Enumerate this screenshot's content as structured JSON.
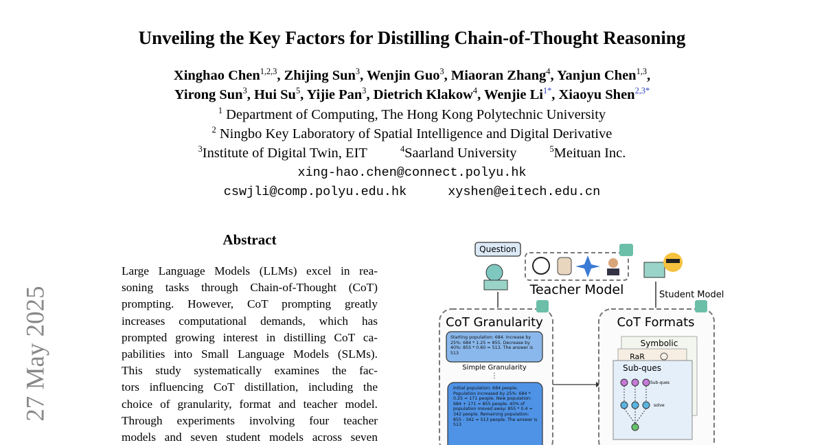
{
  "title": "Unveiling the Key Factors for Distilling Chain-of-Thought Reasoning",
  "authors": [
    [
      {
        "name": "Xinghao Chen",
        "sup": "1,2,3",
        "sep": ","
      },
      {
        "name": "Zhijing Sun",
        "sup": "3",
        "sep": ","
      },
      {
        "name": "Wenjin Guo",
        "sup": "3",
        "sep": ","
      },
      {
        "name": "Miaoran Zhang",
        "sup": "4",
        "sep": ","
      },
      {
        "name": "Yanjun Chen",
        "sup": "1,3",
        "sep": ","
      }
    ],
    [
      {
        "name": "Yirong Sun",
        "sup": "3",
        "sep": ","
      },
      {
        "name": "Hui Su",
        "sup": "5",
        "sep": ","
      },
      {
        "name": "Yijie Pan",
        "sup": "3",
        "sep": ","
      },
      {
        "name": "Dietrich Klakow",
        "sup": "4",
        "sep": ","
      },
      {
        "name": "Wenjie Li",
        "sup": "1*",
        "sep": ","
      },
      {
        "name": "Xiaoyu Shen",
        "sup": "2,3*"
      }
    ]
  ],
  "affiliations": [
    [
      {
        "sup": "1",
        "text": "Department of Computing, The Hong Kong Polytechnic University"
      }
    ],
    [
      {
        "sup": "2",
        "text": "Ningbo Key Laboratory of Spatial Intelligence and Digital Derivative"
      }
    ],
    [
      {
        "sup": "3",
        "text": "Institute of Digital Twin, EIT"
      },
      {
        "sup": "4",
        "text": "Saarland University"
      },
      {
        "sup": "5",
        "text": "Meituan Inc."
      }
    ]
  ],
  "emails": [
    [
      "xing-hao.chen@connect.polyu.hk"
    ],
    [
      "cswjli@comp.polyu.edu.hk",
      "xyshen@eitech.edu.cn"
    ]
  ],
  "side_stamp": "27 May 2025",
  "abstract": {
    "heading": "Abstract",
    "lines": [
      "Large Language Models (LLMs) excel in rea-",
      "soning tasks through Chain-of-Thought (CoT)",
      "prompting. However, CoT prompting greatly",
      "increases computational demands, which has",
      "prompted growing interest in distilling CoT ca-",
      "pabilities into Small Language Models (SLMs).",
      "This study systematically examines the fac-",
      "tors influencing CoT distillation, including the",
      "choice of granularity, format and teacher model.",
      "Through experiments involving four teacher",
      "models and seven student models across seven"
    ]
  },
  "figure": {
    "question": "Question",
    "teacher_model": "Teacher Model",
    "student_model": "Student Model",
    "granularity_title": "CoT Granularity",
    "formats_title": "CoT Formats",
    "simple_example": "Starting population: 684. Increase by 25%: 684 * 1.25 = 855. Decrease by 40%: 855 * 0.60 = 513. The answer is 513",
    "simple_label": "Simple Granularity",
    "detailed_example": "Initial population: 684 people. Population increased by 25%: 684 * 0.25 = 171 people. New population: 684 + 171 = 855 people. 40% of population moved away: 855 * 0.4 = 342 people. Remaining population: 855 - 342 = 513 people. The answer is 513",
    "formats": [
      "Symbolic",
      "RaR",
      "Sub-ques"
    ],
    "sub_labels": [
      "Sub-ques",
      "solve"
    ]
  }
}
